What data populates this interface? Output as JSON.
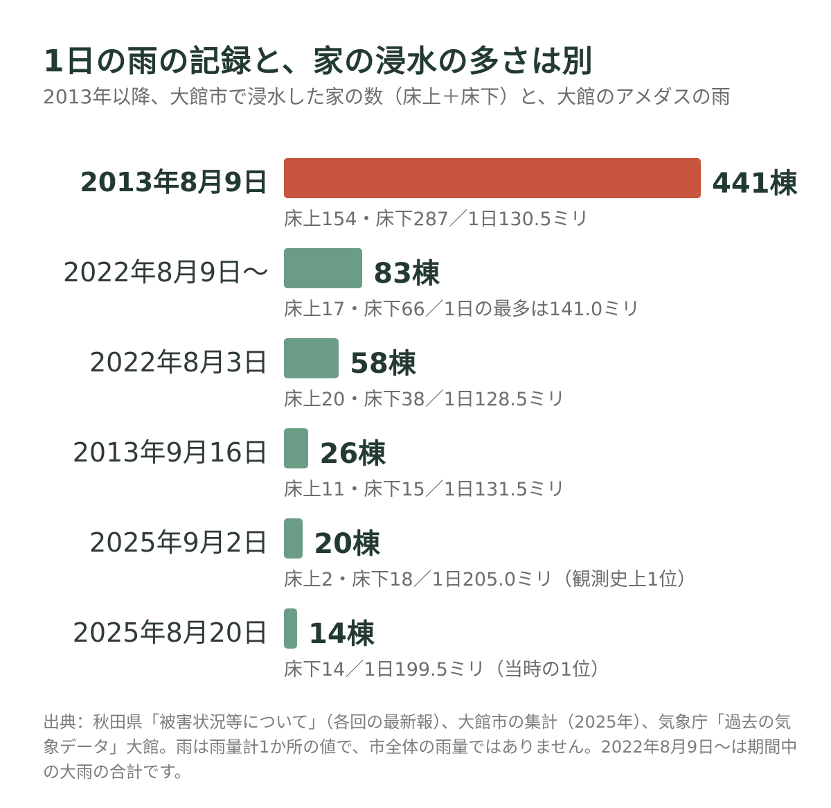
{
  "chart_data": {
    "type": "bar",
    "orientation": "horizontal",
    "title": "1日の雨の記録と、家の浸水の多さは別",
    "subtitle": "2013年以降、大館市で浸水した家の数（床上＋床下）と、大館のアメダスの雨",
    "unit": "棟",
    "highlight_color": "#c8553d",
    "bar_color": "#6b9d86",
    "categories": [
      "2013年8月9日",
      "2022年8月9日～",
      "2022年8月3日",
      "2013年9月16日",
      "2025年9月2日",
      "2025年8月20日"
    ],
    "values": [
      441,
      83,
      58,
      26,
      20,
      14
    ],
    "value_labels": [
      "441棟",
      "83棟",
      "58棟",
      "26棟",
      "20棟",
      "14棟"
    ],
    "details": [
      "床上154・床下287／1日130.5ミリ",
      "床上17・床下66／1日の最多は141.0ミリ",
      "床上20・床下38／1日128.5ミリ",
      "床上11・床下15／1日131.5ミリ",
      "床上2・床下18／1日205.0ミリ（観測史上1位）",
      "床下14／1日199.5ミリ（当時の1位）"
    ],
    "highlight_index": 0
  },
  "source": "出典：秋田県「被害状況等について」（各回の最新報）、大館市の集計（2025年）、気象庁「過去の気象データ」大館。雨は雨量計1か所の値で、市全体の雨量ではありません。2022年8月9日～は期間中の大雨の合計です。"
}
